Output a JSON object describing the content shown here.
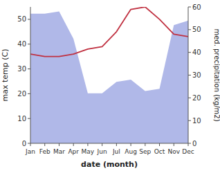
{
  "chart_data": {
    "type": "line",
    "categories": [
      "Jan",
      "Feb",
      "Mar",
      "Apr",
      "May",
      "Jun",
      "Jul",
      "Aug",
      "Sep",
      "Oct",
      "Nov",
      "Dec"
    ],
    "xlabel": "date (month)",
    "ylabel": "max temp (C)",
    "y2label": "med. precipitation (kg/m2)",
    "ylim": [
      0,
      55
    ],
    "yticks": [
      0,
      10,
      20,
      30,
      40,
      50
    ],
    "y2lim": [
      0,
      60
    ],
    "y2ticks": [
      0,
      10,
      20,
      30,
      40,
      50,
      60
    ],
    "series": [
      {
        "type": "area",
        "axis": "y2",
        "color": "#b0b8e8",
        "values": [
          57,
          57,
          58,
          46,
          22,
          22,
          27,
          28,
          23,
          24,
          52,
          54
        ]
      },
      {
        "type": "line",
        "color": "#c03040",
        "values": [
          36,
          35,
          35,
          36,
          38,
          39,
          45,
          54,
          55,
          50,
          44,
          43
        ]
      }
    ]
  }
}
